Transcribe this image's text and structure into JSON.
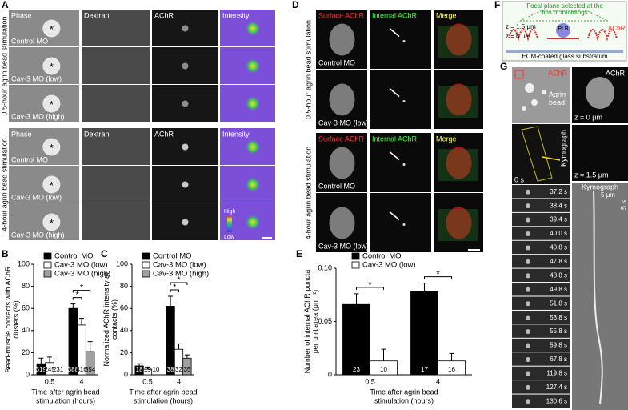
{
  "panel_a": {
    "letter": "A",
    "groups": [
      {
        "stage": "0.5-hour agrin bead stimulation",
        "headers": [
          "Phase",
          "Dextran",
          "AChR",
          "Intensity"
        ],
        "rows": [
          "Control MO",
          "Cav-3 MO (low)",
          "Cav-3 MO (high)"
        ],
        "markers": [
          "*",
          "*",
          "*"
        ]
      },
      {
        "stage": "4-hour agrin bead stimulation",
        "headers": [
          "Phase",
          "Dextran",
          "AChR",
          "Intensity"
        ],
        "rows": [
          "Control MO",
          "Cav-3 MO (low)",
          "Cav-3 MO (high)"
        ],
        "markers": [
          "*",
          "*",
          "*"
        ]
      }
    ],
    "scale": {
      "high": "High",
      "low": "Low"
    }
  },
  "panel_d": {
    "letter": "D",
    "groups": [
      {
        "stage": "0.5-hour agrin bead stimulation",
        "headers": [
          "Surface AChR",
          "Internal AChR",
          "Merge"
        ],
        "rows": [
          "Control MO",
          "Cav-3 MO (low)"
        ]
      },
      {
        "stage": "4-hour agrin bead stimulation",
        "headers": [
          "Surface AChR",
          "Internal AChR",
          "Merge"
        ],
        "rows": [
          "Control MO",
          "Cav-3 MO (low)"
        ]
      }
    ]
  },
  "panel_f": {
    "letter": "F",
    "focal": "Focal plane selected at the tips of infoldings",
    "z_top": "z = 1.5 μm",
    "z_bottom": "z = 0 μm",
    "achr": "AChR",
    "plb": "PLB",
    "substrate": "ECM-coated glass substratum"
  },
  "panel_g": {
    "letter": "G",
    "achr": "AChR",
    "bead": "Agrin bead",
    "achr_right": "AChR",
    "z0": "z = 0 μm",
    "kymo_tag": "Kymograph",
    "z15": "z = 1.5 μm",
    "t0": "0 s",
    "times": [
      "37.2 s",
      "38.4 s",
      "39.4 s",
      "40.0 s",
      "40.8 s",
      "47.8 s",
      "48.8 s",
      "49.8 s",
      "51.8 s",
      "53.8 s",
      "55.8 s",
      "59.8 s",
      "67.8 s",
      "119.8 s",
      "127.4 s",
      "130.6 s"
    ],
    "kymograph": "Kymograph",
    "scale_x": "5 μm",
    "scale_t": "5 s"
  },
  "chart_data": [
    {
      "type": "bar",
      "panel": "B",
      "ylabel": "Bead-muscle contacts with AChR clusters (%)",
      "xlabel": "Time after agrin bead stimulation (hours)",
      "categories": [
        "0.5",
        "4"
      ],
      "ylim": [
        0,
        100
      ],
      "yticks": [
        0,
        20,
        40,
        60,
        80,
        100
      ],
      "annotations": [
        "*",
        "*"
      ],
      "series": [
        {
          "name": "Control MO",
          "color": "#000000",
          "values": [
            10,
            60
          ],
          "errors": [
            5,
            4
          ],
          "n": [
            319,
            388
          ]
        },
        {
          "name": "Cav-3 MO (low)",
          "color": "#ffffff",
          "values": [
            11,
            45
          ],
          "errors": [
            5,
            6
          ],
          "n": [
            245,
            416
          ]
        },
        {
          "name": "Cav-3 MO (high)",
          "color": "#a0a0a0",
          "values": [
            0,
            21
          ],
          "errors": [
            0,
            9
          ],
          "n": [
            231,
            354
          ]
        }
      ]
    },
    {
      "type": "bar",
      "panel": "C",
      "ylabel": "Normalized AChR intensity at contacts (%)",
      "xlabel": "Time after agrin bead stimulation (hours)",
      "categories": [
        "0.5",
        "4"
      ],
      "ylim": [
        0,
        100
      ],
      "yticks": [
        0,
        20,
        40,
        60,
        80,
        100
      ],
      "annotations": [
        "*",
        "*"
      ],
      "series": [
        {
          "name": "Control MO",
          "color": "#000000",
          "values": [
            8,
            62
          ],
          "errors": [
            2,
            9
          ],
          "n": [
            18,
            38
          ]
        },
        {
          "name": "Cav-3 MO (low)",
          "color": "#ffffff",
          "values": [
            5,
            23
          ],
          "errors": [
            2,
            5
          ],
          "n": [
            19,
            32
          ]
        },
        {
          "name": "Cav-3 MO (high)",
          "color": "#a0a0a0",
          "values": [
            0,
            15
          ],
          "errors": [
            0,
            3
          ],
          "n": [
            10,
            35
          ]
        }
      ]
    },
    {
      "type": "bar",
      "panel": "E",
      "ylabel": "Number of internal AChR puncta per unit area (μm⁻²)",
      "xlabel": "Time after agrin bead stimulation (hours)",
      "categories": [
        "0.5",
        "4"
      ],
      "ylim": [
        0,
        0.1
      ],
      "yticks": [
        0,
        0.05,
        {
          "value": 0.1,
          "label": "0.10"
        }
      ],
      "annotations": [
        "*",
        "*"
      ],
      "series": [
        {
          "name": "Control MO",
          "color": "#000000",
          "values": [
            0.066,
            0.078
          ],
          "errors": [
            0.01,
            0.008
          ],
          "n": [
            23,
            17
          ]
        },
        {
          "name": "Cav-3 MO (low)",
          "color": "#ffffff",
          "values": [
            0.013,
            0.013
          ],
          "errors": [
            0.011,
            0.007
          ],
          "n": [
            10,
            16
          ]
        }
      ]
    }
  ]
}
